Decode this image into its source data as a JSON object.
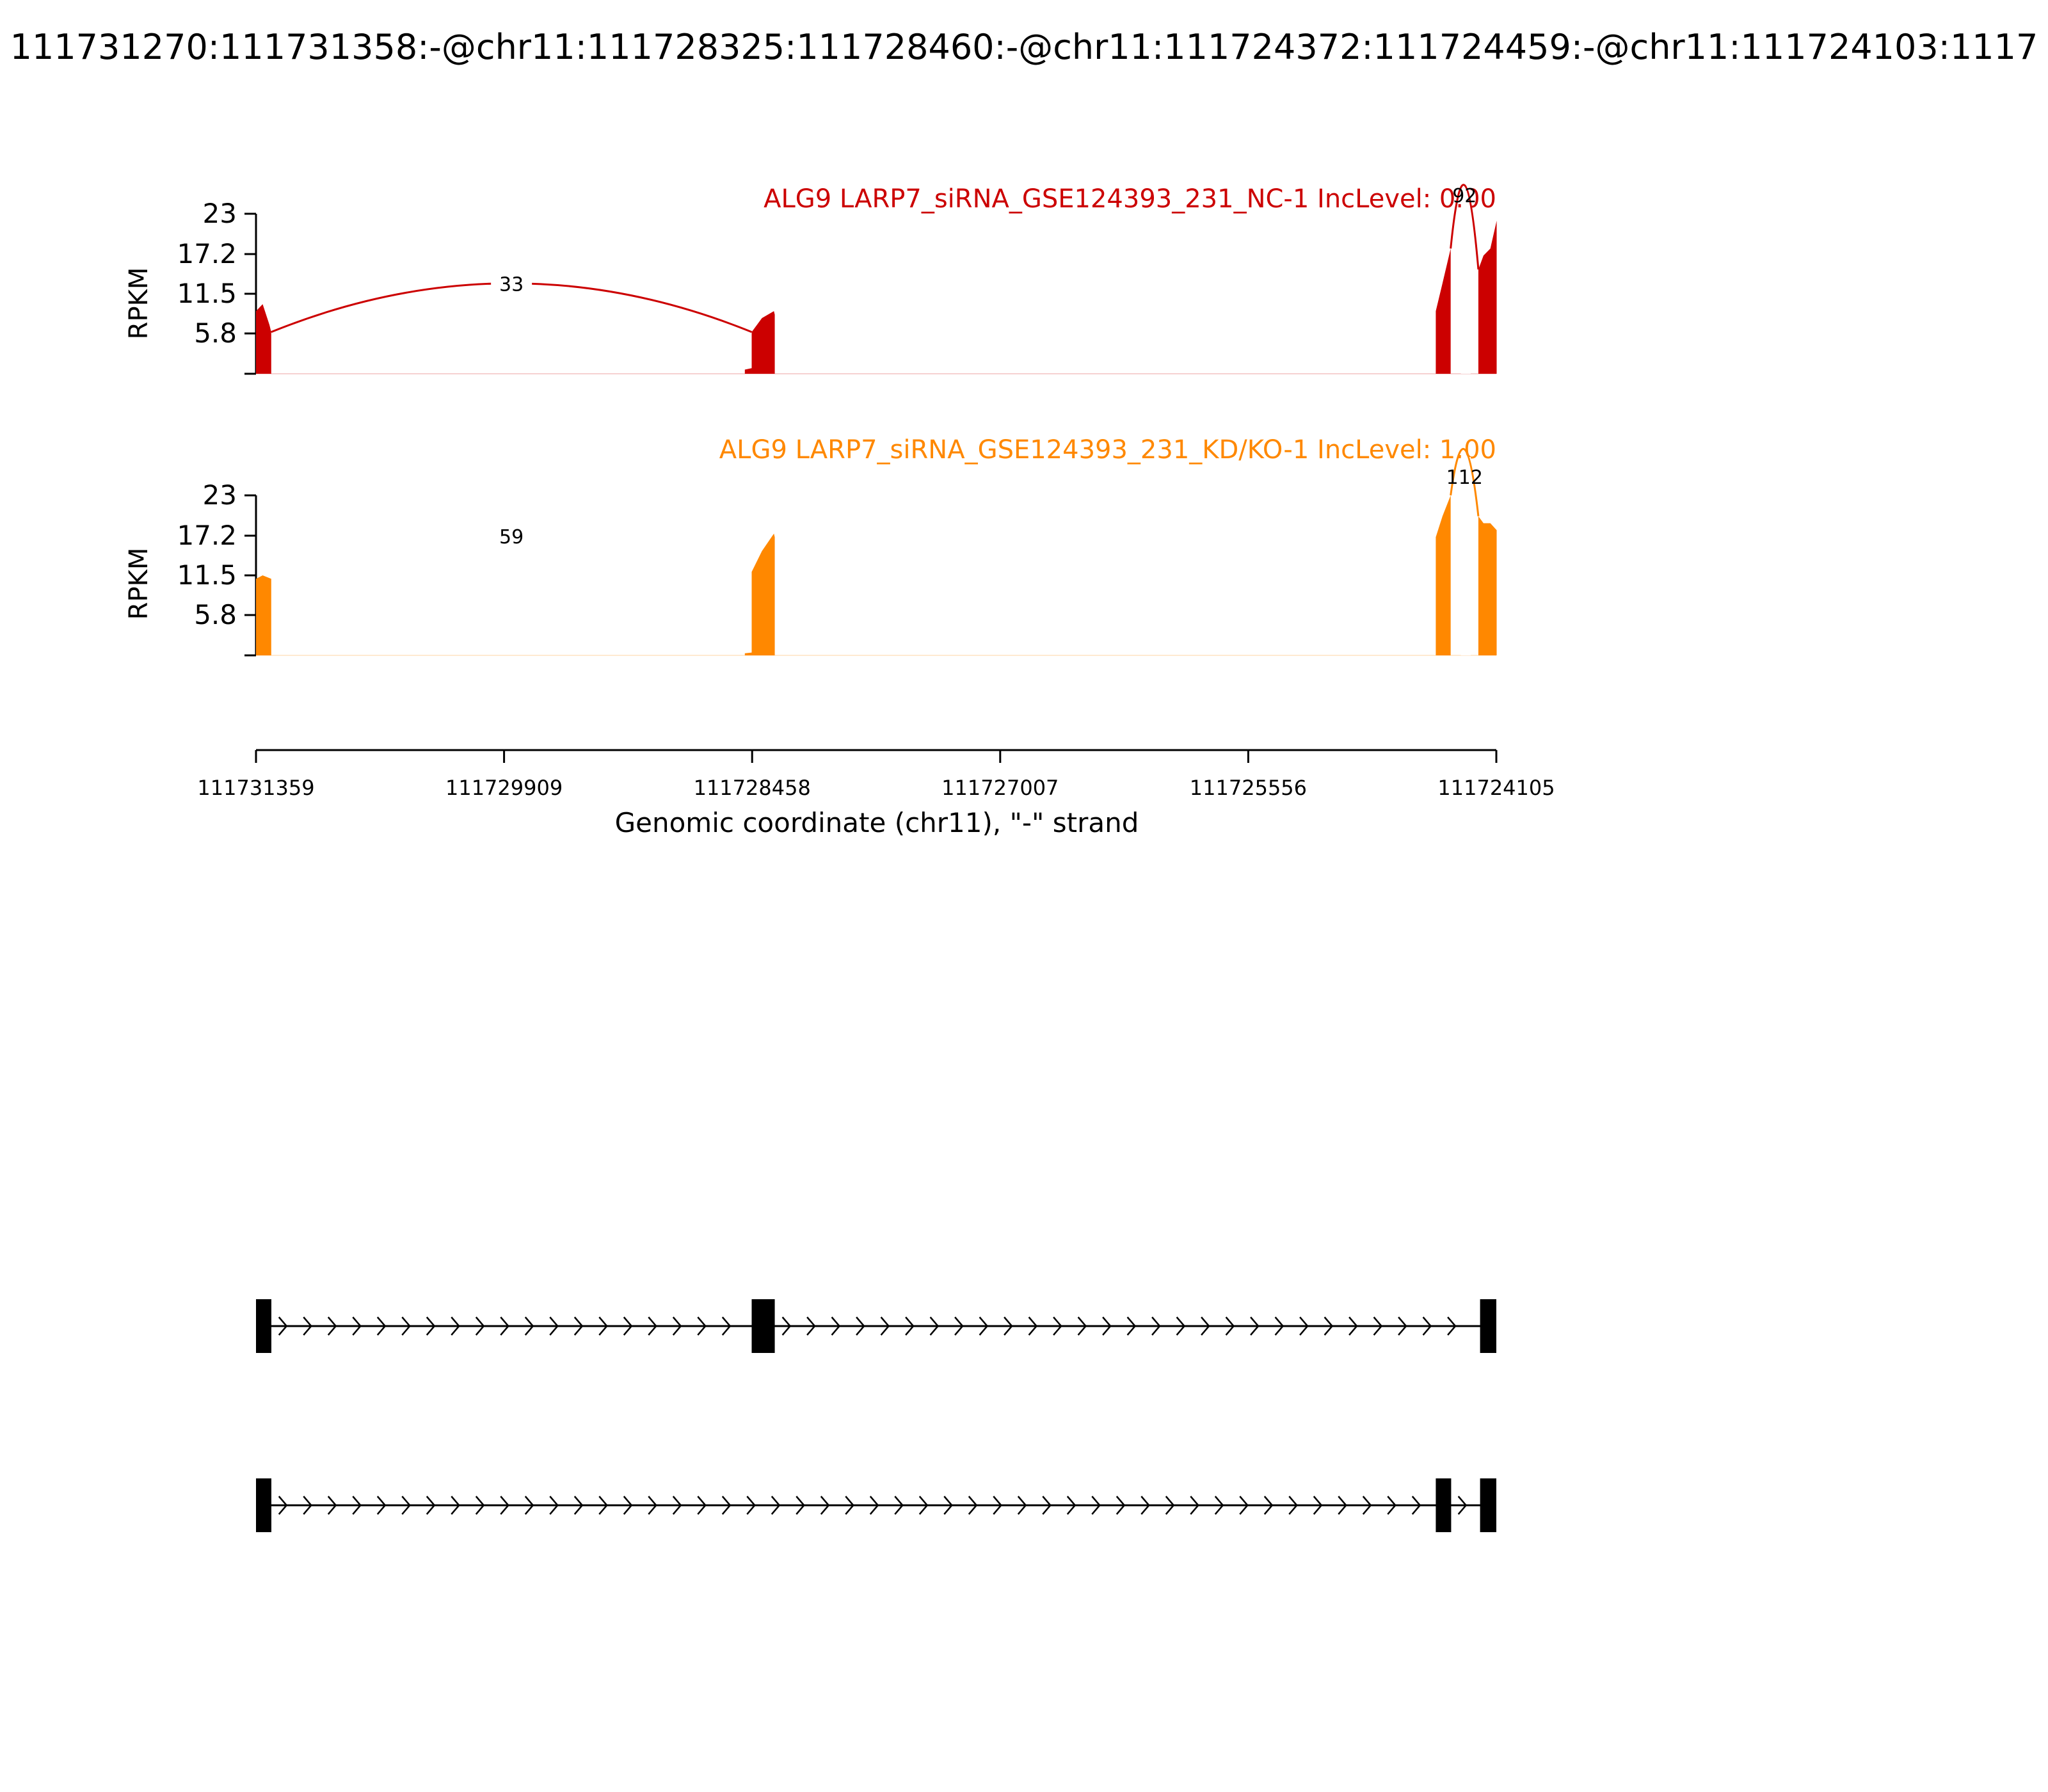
{
  "figure": {
    "title": "111731270:111731358:-@chr11:111728325:111728460:-@chr11:111724372:111724459:-@chr11:111724103:1117",
    "xlabel": "Genomic coordinate (chr11), \"-\" strand"
  },
  "chart_data": [
    {
      "type": "area",
      "title": "ALG9 LARP7_siRNA_GSE124393_231_NC-1 IncLevel: 0.00",
      "ylabel": "RPKM",
      "color": "#cc0000",
      "yticks": [
        "23",
        "17.2",
        "11.5",
        "5.8"
      ],
      "ylim": [
        0,
        23
      ],
      "xlim": [
        111731359,
        111724105
      ],
      "coverage": [
        {
          "x": [
            111731359,
            111731320,
            111731280,
            111731270
          ],
          "y": [
            9,
            10,
            7,
            6
          ]
        },
        {
          "x": [
            111728500,
            111728460
          ],
          "y": [
            0.6,
            0.8
          ]
        },
        {
          "x": [
            111728460,
            111728400,
            111728330,
            111728325
          ],
          "y": [
            6,
            8,
            9,
            8.5
          ]
        },
        {
          "x": [
            111724459,
            111724420,
            111724372
          ],
          "y": [
            9,
            13,
            18
          ]
        },
        {
          "x": [
            111724210,
            111724180,
            111724140,
            111724103
          ],
          "y": [
            15,
            17,
            18,
            22
          ]
        }
      ],
      "junctions": [
        {
          "from": 111731270,
          "to": 111728460,
          "count": "33"
        },
        {
          "from": 111724372,
          "to": 111724210,
          "count": "92"
        }
      ]
    },
    {
      "type": "area",
      "title": "ALG9 LARP7_siRNA_GSE124393_231_KD/KO-1 IncLevel: 1.00",
      "ylabel": "RPKM",
      "color": "#ff8800",
      "yticks": [
        "23",
        "17.2",
        "11.5",
        "5.8"
      ],
      "ylim": [
        0,
        23
      ],
      "xlim": [
        111731359,
        111724105
      ],
      "coverage": [
        {
          "x": [
            111731359,
            111731320,
            111731270
          ],
          "y": [
            11,
            11.5,
            11
          ]
        },
        {
          "x": [
            111728500,
            111728460
          ],
          "y": [
            0.3,
            0.4
          ]
        },
        {
          "x": [
            111728460,
            111728400,
            111728330,
            111728325
          ],
          "y": [
            12,
            15,
            17.5,
            17
          ]
        },
        {
          "x": [
            111724459,
            111724420,
            111724372
          ],
          "y": [
            17,
            20,
            23
          ]
        },
        {
          "x": [
            111724210,
            111724180,
            111724140,
            111724103
          ],
          "y": [
            20,
            19,
            19,
            18
          ]
        }
      ],
      "junctions": [
        {
          "from": 111731270,
          "to": 111728460,
          "count": "59"
        },
        {
          "from": 111724372,
          "to": 111724210,
          "count": "112"
        }
      ]
    }
  ],
  "axis": {
    "ticks": [
      "111731359",
      "111729909",
      "111728458",
      "111727007",
      "111725556",
      "111724105"
    ]
  },
  "isoforms": [
    {
      "exons": [
        [
          111731359,
          111731270
        ],
        [
          111728460,
          111728325
        ],
        [
          111724200,
          111724105
        ]
      ]
    },
    {
      "exons": [
        [
          111731359,
          111731270
        ],
        [
          111724459,
          111724372
        ],
        [
          111724200,
          111724105
        ]
      ]
    }
  ]
}
